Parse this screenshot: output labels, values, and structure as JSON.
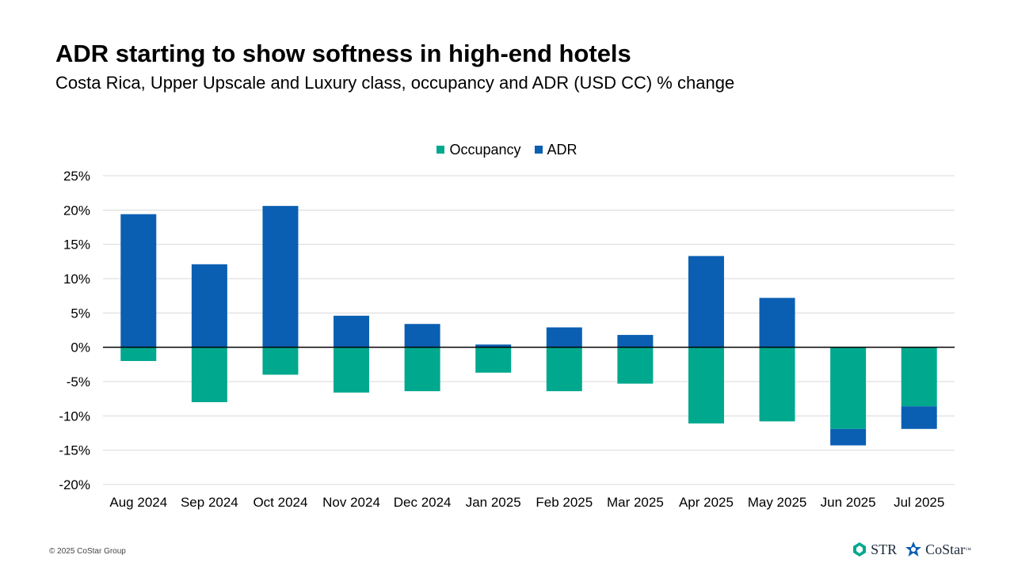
{
  "header": {
    "title": "ADR starting to show softness in high-end hotels",
    "subtitle": "Costa Rica, Upper Upscale and Luxury class, occupancy and ADR (USD CC) % change"
  },
  "footer": {
    "copyright": "© 2025 CoStar Group",
    "logo_str": "STR",
    "logo_costar": "CoStar",
    "logo_costar_tm": "™"
  },
  "colors": {
    "occupancy": "#00a88e",
    "adr": "#0b5fb3",
    "grid": "#d9d9d9",
    "axis": "#000000"
  },
  "chart_data": {
    "type": "bar",
    "stacked": true,
    "title": "ADR starting to show softness in high-end hotels",
    "subtitle": "Costa Rica, Upper Upscale and Luxury class, occupancy and ADR (USD CC) % change",
    "categories": [
      "Aug 2024",
      "Sep 2024",
      "Oct 2024",
      "Nov 2024",
      "Dec 2024",
      "Jan 2025",
      "Feb 2025",
      "Mar 2025",
      "Apr 2025",
      "May 2025",
      "Jun 2025",
      "Jul 2025"
    ],
    "series": [
      {
        "name": "Occupancy",
        "values": [
          -2.0,
          -8.0,
          -4.0,
          -6.6,
          -6.4,
          -3.7,
          -6.4,
          -5.3,
          -11.1,
          -10.8,
          -11.9,
          -8.6
        ]
      },
      {
        "name": "ADR",
        "values": [
          19.4,
          12.1,
          20.6,
          4.6,
          3.4,
          0.4,
          2.9,
          1.8,
          13.3,
          7.2,
          -2.4,
          -3.3
        ]
      }
    ],
    "ylim": [
      -20,
      25
    ],
    "yticks": [
      -20,
      -15,
      -10,
      -5,
      0,
      5,
      10,
      15,
      20,
      25
    ],
    "ytick_labels": [
      "-20%",
      "-15%",
      "-10%",
      "-5%",
      "0%",
      "5%",
      "10%",
      "15%",
      "20%",
      "25%"
    ],
    "legend_position": "top-center",
    "grid": true,
    "xlabel": "",
    "ylabel": ""
  }
}
